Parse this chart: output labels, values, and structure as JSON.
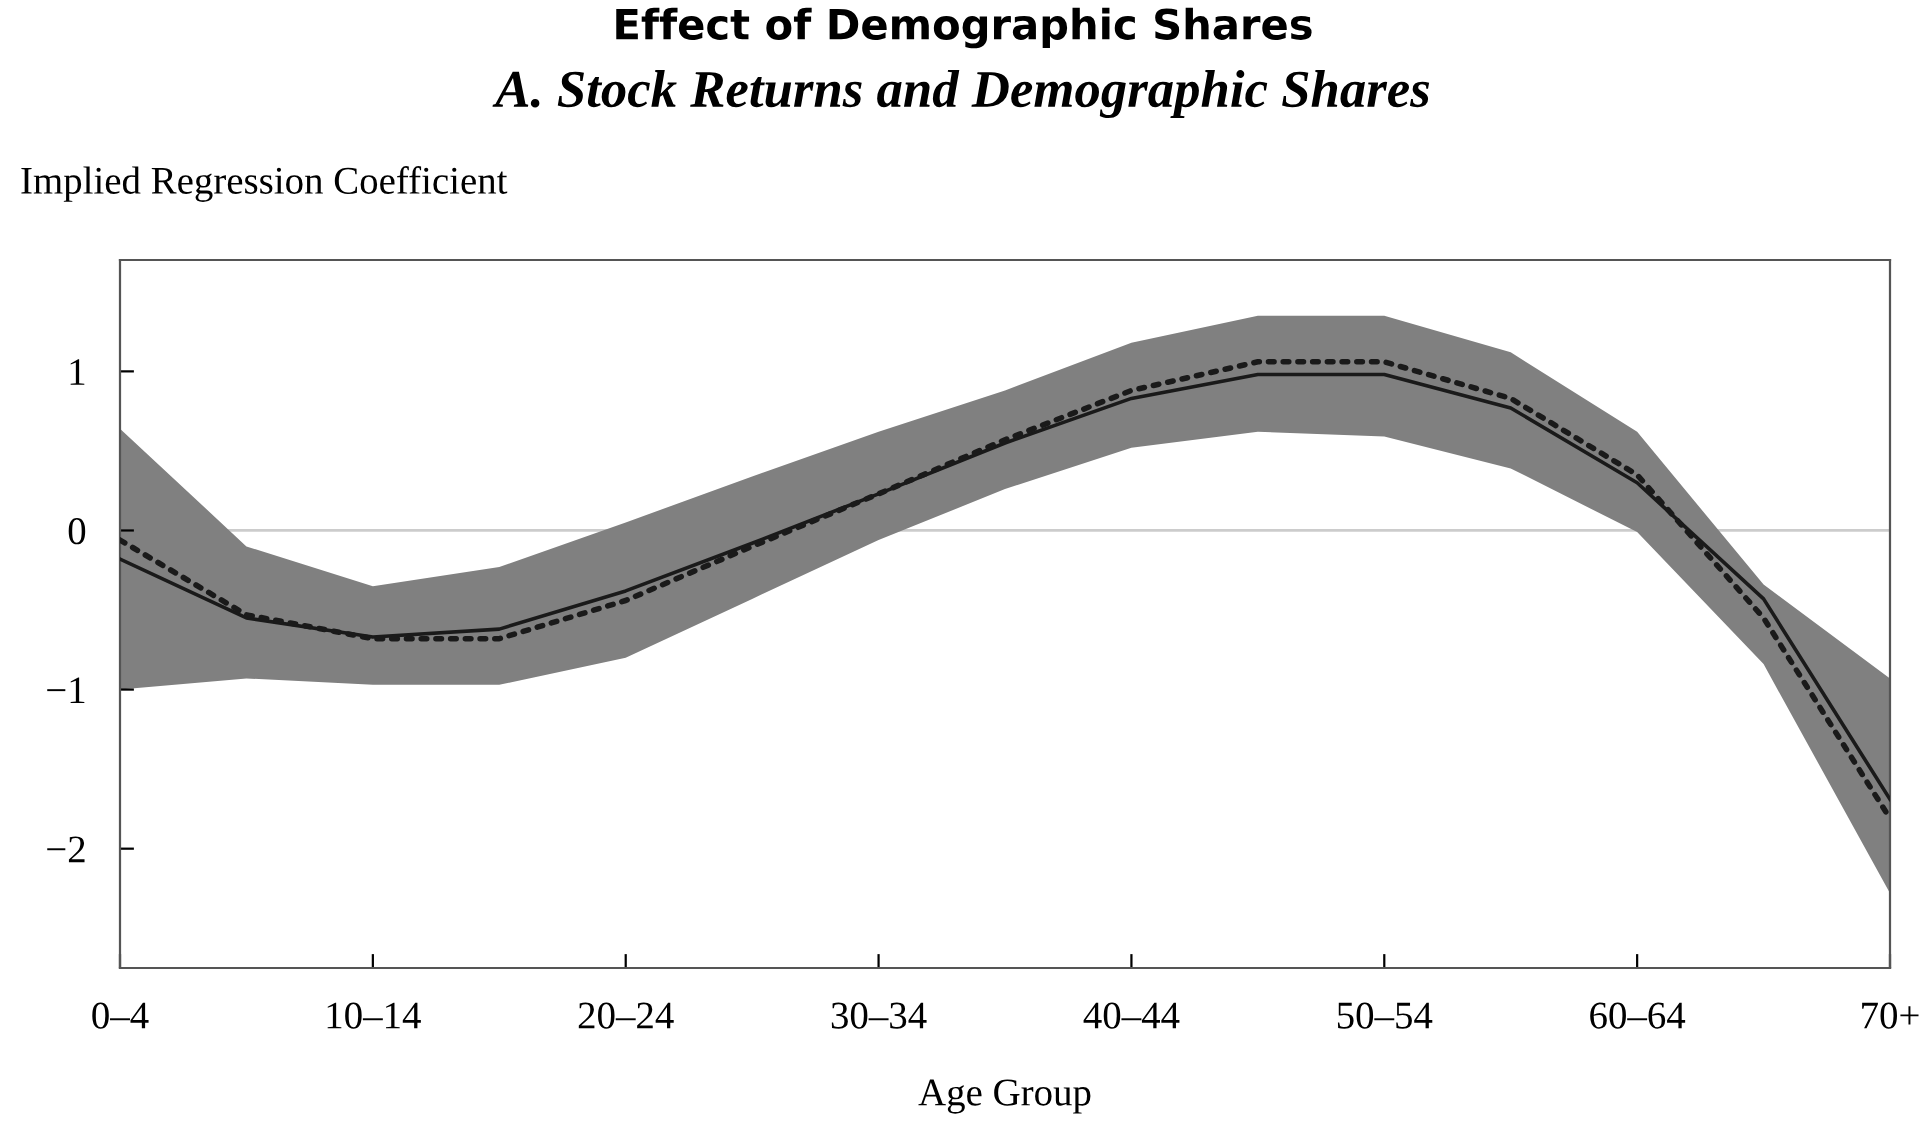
{
  "chart_data": {
    "type": "line",
    "title": "Effect of Demographic Shares",
    "subtitle": "A. Stock Returns and Demographic Shares",
    "ylabel": "Implied Regression Coefficient",
    "xlabel": "Age Group",
    "categories": [
      "0–4",
      null,
      "10–14",
      null,
      "20–24",
      null,
      "30–34",
      null,
      "40–44",
      null,
      "50–54",
      null,
      "60–64",
      null,
      "70+"
    ],
    "series": [
      {
        "color": "#1a1a1a",
        "line_style": "solid",
        "values": [
          -0.18,
          -0.55,
          -0.67,
          -0.62,
          -0.38,
          -0.08,
          0.23,
          0.55,
          0.83,
          0.98,
          0.98,
          0.77,
          0.3,
          -0.43,
          -1.69
        ],
        "lower": [
          -1.0,
          -0.93,
          -0.97,
          -0.97,
          -0.8,
          -0.43,
          -0.06,
          0.26,
          0.52,
          0.62,
          0.59,
          0.39,
          -0.01,
          -0.84,
          -2.28
        ],
        "upper": [
          0.64,
          -0.1,
          -0.35,
          -0.23,
          0.05,
          0.34,
          0.62,
          0.88,
          1.18,
          1.35,
          1.35,
          1.12,
          0.62,
          -0.34,
          -0.93
        ]
      },
      {
        "color": "#1a1a1a",
        "line_style": "dotted",
        "values": [
          -0.06,
          -0.53,
          -0.68,
          -0.68,
          -0.44,
          -0.1,
          0.23,
          0.57,
          0.88,
          1.06,
          1.06,
          0.83,
          0.35,
          -0.55,
          -1.81
        ]
      }
    ],
    "ylim": [
      -2.75,
      1.7
    ],
    "yticks": [
      {
        "value": -2,
        "label": "−2"
      },
      {
        "value": -1,
        "label": "−1"
      },
      0,
      1
    ],
    "ref_lines": [
      {
        "axis": "y",
        "value": 0,
        "color": "#cccccc"
      }
    ],
    "grid": false,
    "legend": false
  }
}
